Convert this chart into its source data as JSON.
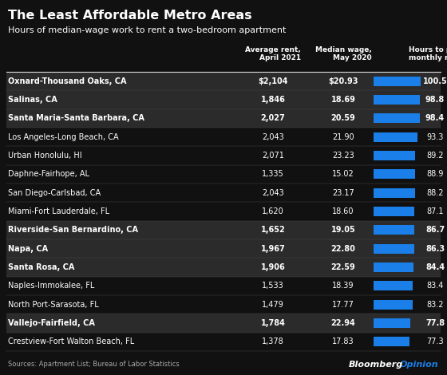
{
  "title": "The Least Affordable Metro Areas",
  "subtitle": "Hours of median-wage work to rent a two-bedroom apartment",
  "source": "Sources: Apartment List; Bureau of Labor Statistics",
  "branding_black": "Bloomberg",
  "branding_blue": "Opinion",
  "col_headers": [
    "Average rent,\nApril 2021",
    "Median wage,\nMay 2020",
    "Hours to pay\nmonthly rent"
  ],
  "rows": [
    {
      "name": "Oxnard-Thousand Oaks, CA",
      "rent": "$2,104",
      "wage": "$20.93",
      "hours": 100.5,
      "bold": true
    },
    {
      "name": "Salinas, CA",
      "rent": "1,846",
      "wage": "18.69",
      "hours": 98.8,
      "bold": true
    },
    {
      "name": "Santa Maria-Santa Barbara, CA",
      "rent": "2,027",
      "wage": "20.59",
      "hours": 98.4,
      "bold": true
    },
    {
      "name": "Los Angeles-Long Beach, CA",
      "rent": "2,043",
      "wage": "21.90",
      "hours": 93.3,
      "bold": false
    },
    {
      "name": "Urban Honolulu, HI",
      "rent": "2,071",
      "wage": "23.23",
      "hours": 89.2,
      "bold": false
    },
    {
      "name": "Daphne-Fairhope, AL",
      "rent": "1,335",
      "wage": "15.02",
      "hours": 88.9,
      "bold": false
    },
    {
      "name": "San Diego-Carlsbad, CA",
      "rent": "2,043",
      "wage": "23.17",
      "hours": 88.2,
      "bold": false
    },
    {
      "name": "Miami-Fort Lauderdale, FL",
      "rent": "1,620",
      "wage": "18.60",
      "hours": 87.1,
      "bold": false
    },
    {
      "name": "Riverside-San Bernardino, CA",
      "rent": "1,652",
      "wage": "19.05",
      "hours": 86.7,
      "bold": true
    },
    {
      "name": "Napa, CA",
      "rent": "1,967",
      "wage": "22.80",
      "hours": 86.3,
      "bold": true
    },
    {
      "name": "Santa Rosa, CA",
      "rent": "1,906",
      "wage": "22.59",
      "hours": 84.4,
      "bold": true
    },
    {
      "name": "Naples-Immokalee, FL",
      "rent": "1,533",
      "wage": "18.39",
      "hours": 83.4,
      "bold": false
    },
    {
      "name": "North Port-Sarasota, FL",
      "rent": "1,479",
      "wage": "17.77",
      "hours": 83.2,
      "bold": false
    },
    {
      "name": "Vallejo-Fairfield, CA",
      "rent": "1,784",
      "wage": "22.94",
      "hours": 77.8,
      "bold": true
    },
    {
      "name": "Crestview-Fort Walton Beach, FL",
      "rent": "1,378",
      "wage": "17.83",
      "hours": 77.3,
      "bold": false
    }
  ],
  "bg_color": "#111111",
  "bold_bg_color": "#2b2b2b",
  "text_color": "#ffffff",
  "source_color": "#aaaaaa",
  "bar_color": "#1a7fe8",
  "branding_blue_color": "#1a7fe8",
  "sep_color": "#444444",
  "header_line_color": "#dddddd",
  "bar_max": 100.5
}
